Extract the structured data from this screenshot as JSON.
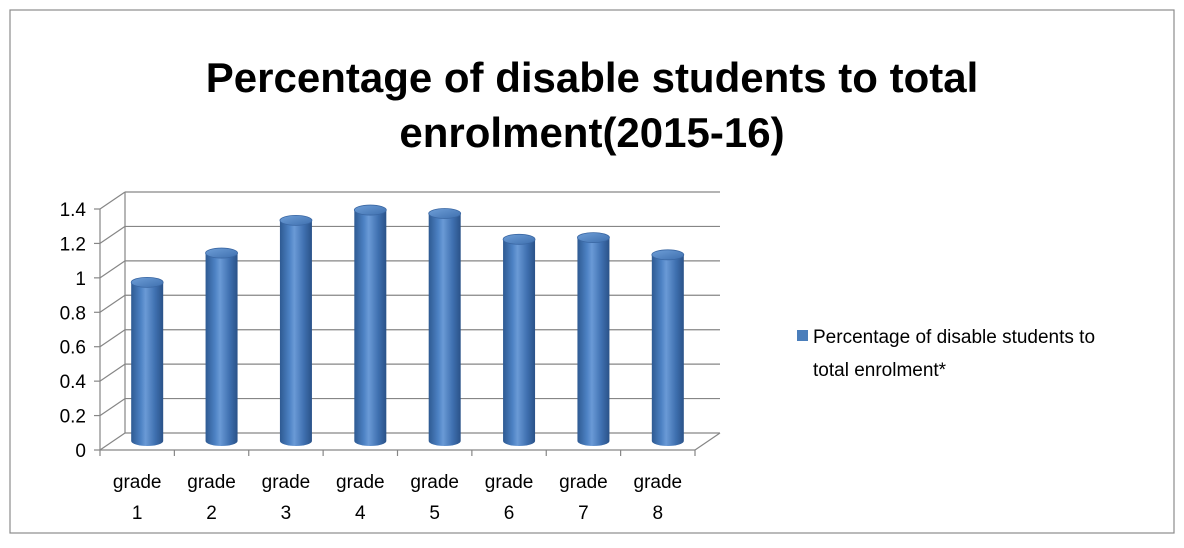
{
  "chart_data": {
    "type": "bar",
    "style": "3d-cylinder",
    "title_lines": [
      "Percentage of disable students to total",
      "enrolment(2015-16)"
    ],
    "categories": [
      [
        "grade",
        "1"
      ],
      [
        "grade",
        "2"
      ],
      [
        "grade",
        "3"
      ],
      [
        "grade",
        "4"
      ],
      [
        "grade",
        "5"
      ],
      [
        "grade",
        "6"
      ],
      [
        "grade",
        "7"
      ],
      [
        "grade",
        "8"
      ]
    ],
    "series": [
      {
        "name": "Percentage of disable students to total enrolment*",
        "values": [
          0.91,
          1.08,
          1.27,
          1.33,
          1.31,
          1.16,
          1.17,
          1.07
        ],
        "color": "#4a7ebb"
      }
    ],
    "yticks": [
      "0",
      "0.2",
      "0.4",
      "0.6",
      "0.8",
      "1",
      "1.2",
      "1.4"
    ],
    "ylim": [
      0,
      1.4
    ],
    "grid": true,
    "legend_position": "right",
    "legend_lines": [
      "Percentage of disable students to",
      "total enrolment*"
    ]
  }
}
